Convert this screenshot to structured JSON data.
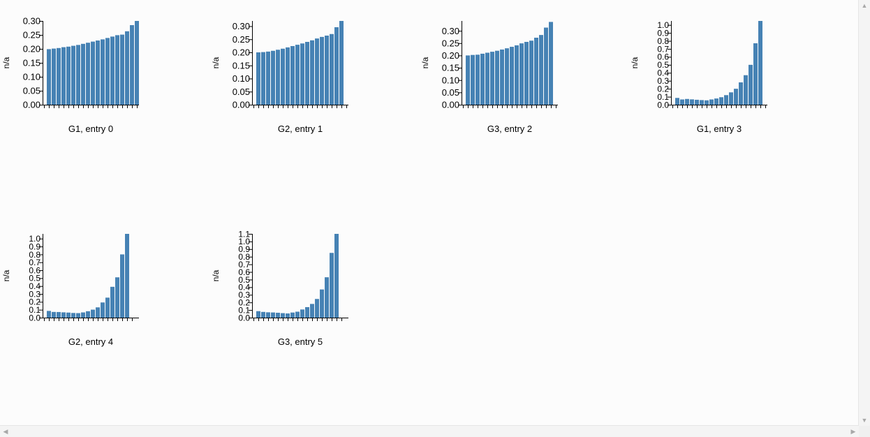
{
  "icons": {
    "scroll_up": "triangle-up-icon",
    "scroll_down": "triangle-down-icon",
    "scroll_left": "triangle-left-icon",
    "scroll_right": "triangle-right-icon"
  },
  "chart_data": [
    {
      "type": "bar",
      "title": "G1, entry 0",
      "ylabel": "n/a",
      "ylim": [
        0,
        0.3
      ],
      "yticks": [
        "0.00",
        "0.05",
        "0.10",
        "0.15",
        "0.20",
        "0.25",
        "0.30"
      ],
      "color": "#4682b4",
      "values": [
        0.199,
        0.201,
        0.203,
        0.206,
        0.208,
        0.211,
        0.214,
        0.218,
        0.222,
        0.226,
        0.23,
        0.234,
        0.239,
        0.244,
        0.249,
        0.251,
        0.263,
        0.285,
        0.3
      ]
    },
    {
      "type": "bar",
      "title": "G2, entry 1",
      "ylabel": "n/a",
      "ylim": [
        0,
        0.32
      ],
      "yticks": [
        "0.00",
        "0.05",
        "0.10",
        "0.15",
        "0.20",
        "0.25",
        "0.30"
      ],
      "color": "#4682b4",
      "values": [
        0.2,
        0.201,
        0.203,
        0.206,
        0.21,
        0.214,
        0.219,
        0.224,
        0.229,
        0.234,
        0.24,
        0.246,
        0.253,
        0.259,
        0.264,
        0.27,
        0.296,
        0.32
      ]
    },
    {
      "type": "bar",
      "title": "G3, entry 2",
      "ylabel": "n/a",
      "ylim": [
        0,
        0.34
      ],
      "yticks": [
        "0.00",
        "0.05",
        "0.10",
        "0.15",
        "0.20",
        "0.25",
        "0.30"
      ],
      "color": "#4682b4",
      "values": [
        0.2,
        0.202,
        0.203,
        0.207,
        0.211,
        0.215,
        0.219,
        0.224,
        0.229,
        0.235,
        0.241,
        0.249,
        0.255,
        0.26,
        0.272,
        0.283,
        0.313,
        0.336
      ]
    },
    {
      "type": "bar",
      "title": "G1, entry 3",
      "ylabel": "n/a",
      "ylim": [
        0,
        1.05
      ],
      "yticks": [
        "0.0",
        "0.1",
        "0.2",
        "0.3",
        "0.4",
        "0.5",
        "0.6",
        "0.7",
        "0.8",
        "0.9",
        "1.0"
      ],
      "color": "#4682b4",
      "values": [
        0.085,
        0.066,
        0.072,
        0.067,
        0.062,
        0.058,
        0.055,
        0.066,
        0.078,
        0.094,
        0.12,
        0.155,
        0.2,
        0.28,
        0.37,
        0.5,
        0.77,
        1.05
      ]
    },
    {
      "type": "bar",
      "title": "G2, entry 4",
      "ylabel": "n/a",
      "ylim": [
        0,
        1.06
      ],
      "yticks": [
        "0.0",
        "0.1",
        "0.2",
        "0.3",
        "0.4",
        "0.5",
        "0.6",
        "0.7",
        "0.8",
        "0.9",
        "1.0"
      ],
      "color": "#4682b4",
      "values": [
        0.085,
        0.072,
        0.071,
        0.067,
        0.064,
        0.059,
        0.057,
        0.066,
        0.081,
        0.101,
        0.13,
        0.192,
        0.253,
        0.39,
        0.51,
        0.8,
        1.06
      ]
    },
    {
      "type": "bar",
      "title": "G3, entry 5",
      "ylabel": "n/a",
      "ylim": [
        0,
        1.1
      ],
      "yticks": [
        "0.0",
        "0.1",
        "0.2",
        "0.3",
        "0.4",
        "0.5",
        "0.6",
        "0.7",
        "0.8",
        "0.9",
        "1.0",
        "1.1"
      ],
      "color": "#4682b4",
      "values": [
        0.085,
        0.075,
        0.07,
        0.068,
        0.064,
        0.059,
        0.055,
        0.067,
        0.078,
        0.107,
        0.138,
        0.18,
        0.245,
        0.37,
        0.53,
        0.85,
        1.1
      ]
    }
  ]
}
